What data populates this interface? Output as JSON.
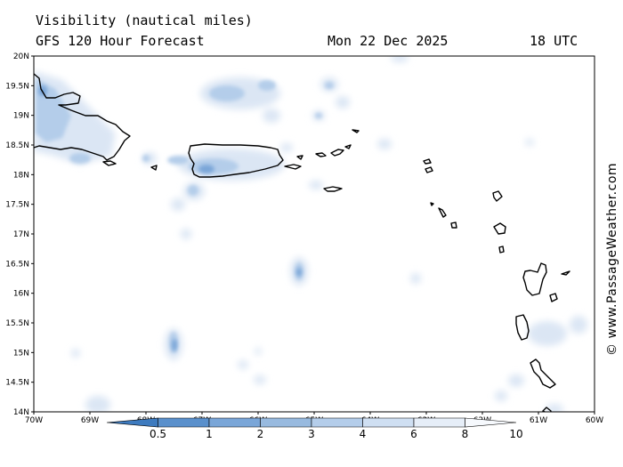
{
  "title_line1": "Visibility (nautical miles)",
  "title_line2": "GFS 120 Hour Forecast",
  "date": "Mon 22 Dec 2025",
  "time": "18 UTC",
  "credit": "© www.PassageWeather.com",
  "map": {
    "lon_range": [
      -70,
      -60
    ],
    "lat_range": [
      14,
      20
    ],
    "lat_ticks": [
      "20N",
      "19.5N",
      "19N",
      "18.5N",
      "18N",
      "17.5N",
      "17N",
      "16.5N",
      "16N",
      "15.5N",
      "15N",
      "14.5N",
      "14N"
    ],
    "lon_ticks": [
      "70W",
      "69W",
      "68W",
      "67W",
      "66W",
      "65W",
      "64W",
      "63W",
      "62W",
      "61W",
      "60W"
    ]
  },
  "colorbar": {
    "labels": [
      "0.5",
      "1",
      "2",
      "3",
      "4",
      "6",
      "8",
      "10"
    ],
    "colors": [
      "#3e7bbf",
      "#5a90cc",
      "#7aa6d8",
      "#98badf",
      "#b4cdea",
      "#cfdff2",
      "#e6eef8",
      "#f6f9fd"
    ]
  }
}
